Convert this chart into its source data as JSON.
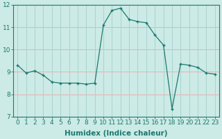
{
  "x": [
    0,
    1,
    2,
    3,
    4,
    5,
    6,
    7,
    8,
    9,
    10,
    11,
    12,
    13,
    14,
    15,
    16,
    17,
    18,
    19,
    20,
    21,
    22,
    23
  ],
  "y": [
    9.3,
    8.95,
    9.05,
    8.85,
    8.55,
    8.5,
    8.5,
    8.5,
    8.45,
    8.5,
    11.1,
    11.75,
    11.85,
    11.35,
    11.25,
    11.2,
    10.65,
    10.2,
    7.35,
    9.35,
    9.3,
    9.2,
    8.95,
    8.9
  ],
  "line_color": "#1a7a6e",
  "bg_color": "#cceae6",
  "grid_color_h": "#e8b0b0",
  "grid_color_v": "#aad4cf",
  "xlabel": "Humidex (Indice chaleur)",
  "ylim": [
    7,
    12
  ],
  "xlim": [
    -0.5,
    23.5
  ],
  "yticks": [
    7,
    8,
    9,
    10,
    11,
    12
  ],
  "xticks": [
    0,
    1,
    2,
    3,
    4,
    5,
    6,
    7,
    8,
    9,
    10,
    11,
    12,
    13,
    14,
    15,
    16,
    17,
    18,
    19,
    20,
    21,
    22,
    23
  ],
  "tick_color": "#1a7a6e",
  "label_color": "#1a7a6e",
  "axis_color": "#1a7a6e",
  "font_size": 6.5,
  "xlabel_fontsize": 7.5
}
